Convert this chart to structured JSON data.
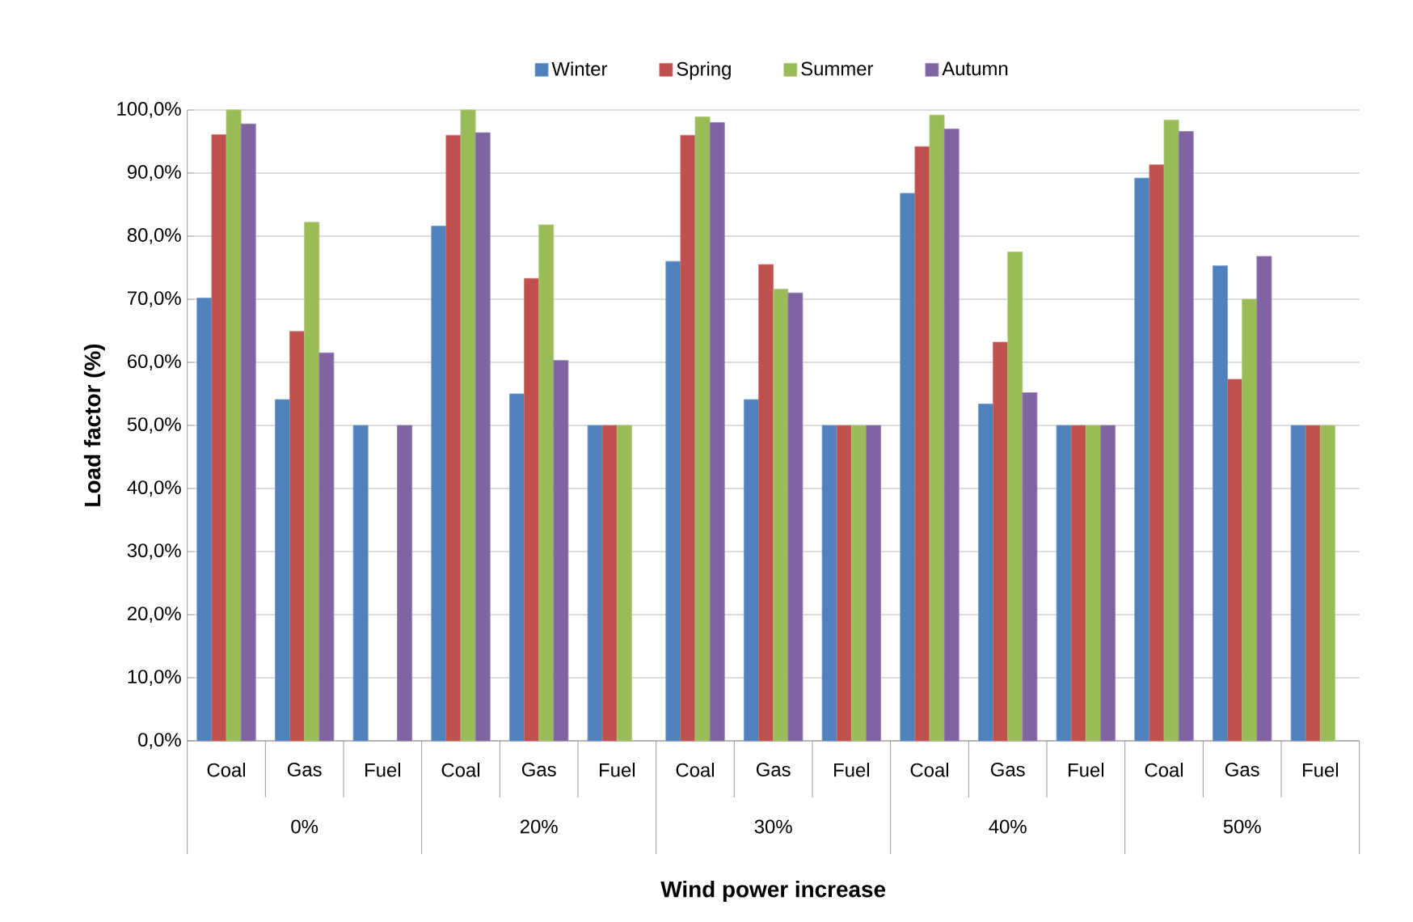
{
  "chart_data": {
    "type": "bar",
    "categories": [
      "Coal",
      "Gas",
      "Fuel",
      "Coal",
      "Gas",
      "Fuel",
      "Coal",
      "Gas",
      "Fuel",
      "Coal",
      "Gas",
      "Fuel",
      "Coal",
      "Gas",
      "Fuel"
    ],
    "series": [
      {
        "name": "Winter",
        "color": "#4f81bd",
        "values": [
          70.2,
          54.1,
          50,
          81.6,
          55.0,
          50,
          76.0,
          54.1,
          50,
          86.8,
          53.4,
          50,
          89.2,
          75.3,
          50
        ]
      },
      {
        "name": "Spring",
        "color": "#c0504d",
        "values": [
          96.1,
          64.9,
          null,
          96.0,
          73.3,
          50,
          96.0,
          75.5,
          50,
          94.2,
          63.2,
          50,
          91.3,
          57.3,
          50
        ]
      },
      {
        "name": "Summer",
        "color": "#9bbb59",
        "values": [
          100,
          82.2,
          null,
          100,
          81.8,
          50,
          98.9,
          71.6,
          50,
          99.2,
          77.5,
          50,
          98.4,
          70.0,
          50
        ]
      },
      {
        "name": "Autumn",
        "color": "#8064a2",
        "values": [
          97.8,
          61.5,
          50,
          96.4,
          60.3,
          null,
          98.0,
          71.0,
          50,
          97.0,
          55.2,
          50,
          96.6,
          76.8,
          null
        ]
      }
    ],
    "ylabel": "Load factor (%)",
    "xlabel": "Wind power increase",
    "annotations": [
      "0%",
      "20%",
      "30%",
      "40%",
      "50%"
    ],
    "ylim": [
      0,
      100
    ],
    "yticks": [
      {
        "value": 0,
        "label": "0,0%"
      },
      {
        "value": 10,
        "label": "10,0%"
      },
      {
        "value": 20,
        "label": "20,0%"
      },
      {
        "value": 30,
        "label": "30,0%"
      },
      {
        "value": 40,
        "label": "40,0%"
      },
      {
        "value": 50,
        "label": "50,0%"
      },
      {
        "value": 60,
        "label": "60,0%"
      },
      {
        "value": 70,
        "label": "70,0%"
      },
      {
        "value": 80,
        "label": "80,0%"
      },
      {
        "value": 90,
        "label": "90,0%"
      },
      {
        "value": 100,
        "label": "100,0%"
      }
    ],
    "grid": "y",
    "legend": "top"
  }
}
